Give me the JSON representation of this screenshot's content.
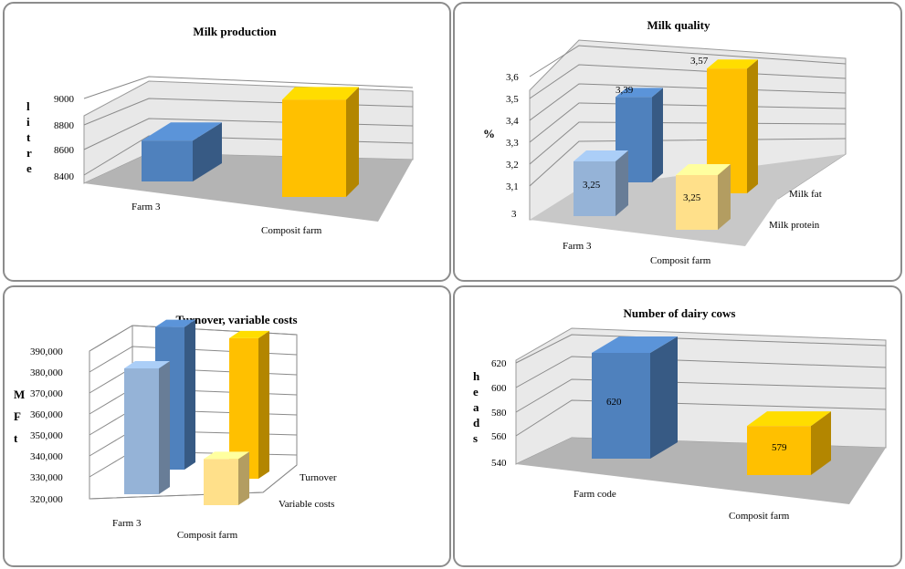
{
  "chart_data": [
    {
      "type": "bar",
      "title": "Milk production",
      "ylabel": "litre",
      "yticks": [
        "9000",
        "8800",
        "8600",
        "8400"
      ],
      "ylim": [
        8400,
        9000
      ],
      "categories": [
        "Farm 3",
        "Composit farm"
      ],
      "series": [
        {
          "values": [
            8640,
            8800
          ]
        }
      ],
      "colors": [
        "#4f81bd",
        "#ffc000"
      ]
    },
    {
      "type": "bar",
      "title": "Milk quality",
      "ylabel": "%",
      "yticks": [
        "3,6",
        "3,5",
        "3,4",
        "3,3",
        "3,2",
        "3,1",
        "3"
      ],
      "ylim": [
        3,
        3.6
      ],
      "categories": [
        "Farm 3",
        "Composit farm"
      ],
      "series": [
        {
          "name": "Milk fat",
          "values": [
            3.39,
            3.57
          ],
          "labels": [
            "3,39",
            "3,57"
          ]
        },
        {
          "name": "Milk protein",
          "values": [
            3.25,
            3.25
          ],
          "labels": [
            "3,25",
            "3,25"
          ]
        }
      ]
    },
    {
      "type": "bar",
      "title": "Turnover, variable costs",
      "ylabel": "M Ft",
      "yticks": [
        "390,000",
        "380,000",
        "370,000",
        "360,000",
        "350,000",
        "340,000",
        "330,000",
        "320,000"
      ],
      "ylim": [
        320000,
        390000
      ],
      "categories": [
        "Farm 3",
        "Composit farm"
      ],
      "series": [
        {
          "name": "Turnover",
          "values": [
            388000,
            387000
          ]
        },
        {
          "name": "Variable costs",
          "values": [
            380000,
            342000
          ]
        }
      ]
    },
    {
      "type": "bar",
      "title": "Number of dairy cows",
      "ylabel": "heads",
      "yticks": [
        "620",
        "600",
        "580",
        "560",
        "540"
      ],
      "ylim": [
        540,
        620
      ],
      "categories": [
        "Farm code",
        "Composit farm"
      ],
      "series": [
        {
          "values": [
            620,
            579
          ],
          "labels": [
            "620",
            "579"
          ]
        }
      ],
      "colors": [
        "#4f81bd",
        "#ffc000"
      ]
    }
  ]
}
